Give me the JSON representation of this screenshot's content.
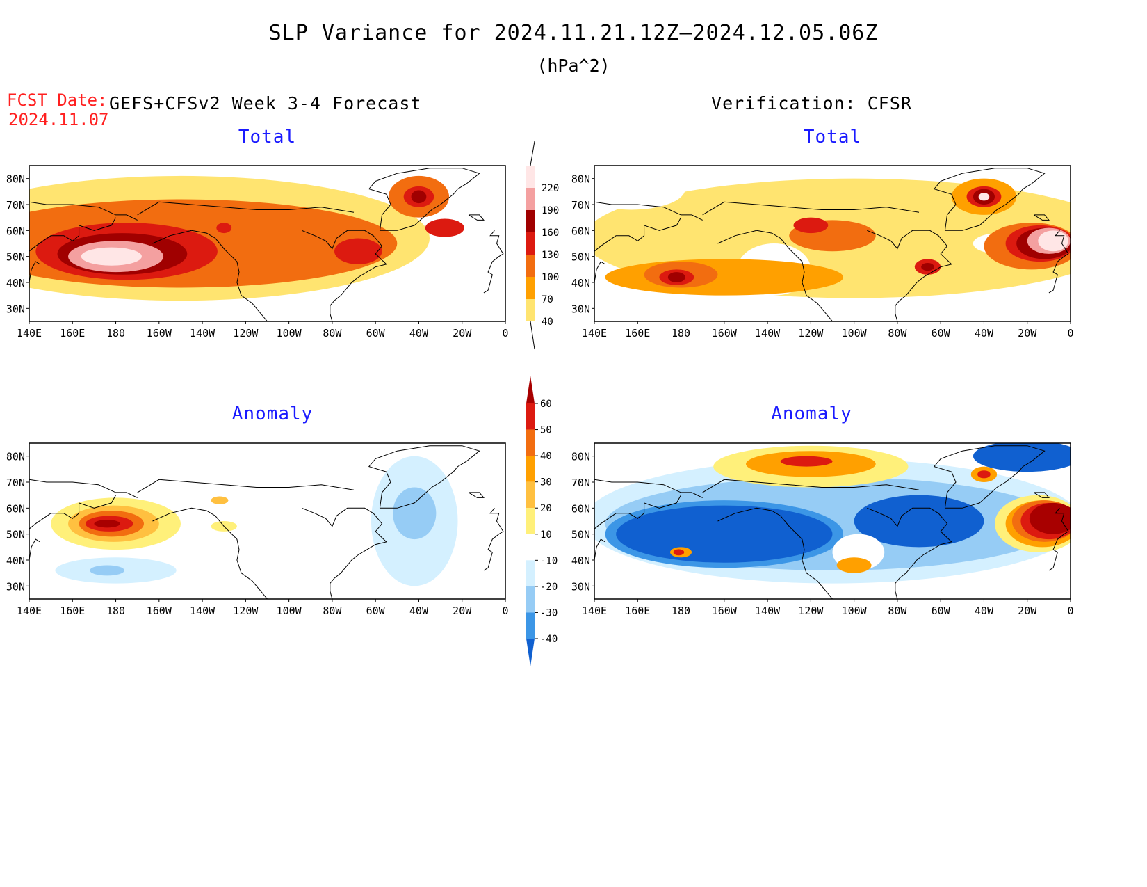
{
  "title": "SLP Variance for 2024.11.21.12Z—2024.12.05.06Z",
  "units": "(hPa^2)",
  "fcst_date_label": "FCST Date:",
  "fcst_date": "2024.11.07",
  "left_header": "GEFS+CFSv2 Week 3-4 Forecast",
  "right_header": "Verification: CFSR",
  "panel_titles": {
    "top_left": "Total",
    "top_right": "Total",
    "bottom_left": "Anomaly",
    "bottom_right": "Anomaly"
  },
  "lat_labels": [
    "80N",
    "70N",
    "60N",
    "50N",
    "40N",
    "30N"
  ],
  "lon_labels": [
    "140E",
    "160E",
    "180",
    "160W",
    "140W",
    "120W",
    "100W",
    "80W",
    "60W",
    "40W",
    "20W",
    "0"
  ],
  "total_colorbar": {
    "levels": [
      "220",
      "190",
      "160",
      "130",
      "100",
      "70",
      "40"
    ],
    "colors": [
      "#ffe6e6",
      "#f4a0a0",
      "#a00000",
      "#dc1a10",
      "#f26d10",
      "#ffa000",
      "#ffe470"
    ]
  },
  "anomaly_colorbar": {
    "levels": [
      "60",
      "50",
      "40",
      "30",
      "20",
      "10",
      "-10",
      "-20",
      "-30",
      "-40"
    ],
    "colors": [
      "#a80000",
      "#dc1a10",
      "#f26d10",
      "#ffa000",
      "#ffc040",
      "#fff07a",
      "#ffffff",
      "#d4f0ff",
      "#96ccf5",
      "#3c96e6",
      "#1060d0"
    ]
  },
  "fields": {
    "top_left": [
      {
        "c": "#ffe470",
        "lon": 210,
        "lat": 57,
        "rx": 115,
        "ry": 24
      },
      {
        "c": "#f26d10",
        "lon": 210,
        "lat": 55,
        "rx": 100,
        "ry": 17
      },
      {
        "c": "#dc1a10",
        "lon": 185,
        "lat": 52,
        "rx": 42,
        "ry": 11
      },
      {
        "c": "#a00000",
        "lon": 183,
        "lat": 51,
        "rx": 30,
        "ry": 8
      },
      {
        "c": "#f4a0a0",
        "lon": 180,
        "lat": 50,
        "rx": 22,
        "ry": 6
      },
      {
        "c": "#ffe6e6",
        "lon": 178,
        "lat": 50,
        "rx": 14,
        "ry": 3.5
      },
      {
        "c": "#f26d10",
        "lon": 320,
        "lat": 73,
        "rx": 14,
        "ry": 8
      },
      {
        "c": "#dc1a10",
        "lon": 320,
        "lat": 73,
        "rx": 7,
        "ry": 4
      },
      {
        "c": "#a00000",
        "lon": 320,
        "lat": 73,
        "rx": 3.5,
        "ry": 2.5
      },
      {
        "c": "#dc1a10",
        "lon": 292,
        "lat": 52,
        "rx": 11,
        "ry": 5
      },
      {
        "c": "#dc1a10",
        "lon": 332,
        "lat": 61,
        "rx": 9,
        "ry": 3.5
      },
      {
        "c": "#dc1a10",
        "lon": 230,
        "lat": 61,
        "rx": 3.5,
        "ry": 2
      }
    ],
    "top_right": [
      {
        "c": "#ffe470",
        "lon": 260,
        "lat": 57,
        "rx": 125,
        "ry": 23
      },
      {
        "c": "#ffffff",
        "lon": 157,
        "lat": 76,
        "rx": 25,
        "ry": 8
      },
      {
        "c": "#ffffff",
        "lon": 223,
        "lat": 45,
        "rx": 17,
        "ry": 10
      },
      {
        "c": "#ffffff",
        "lon": 327,
        "lat": 55,
        "rx": 12,
        "ry": 4
      },
      {
        "c": "#ffa000",
        "lon": 200,
        "lat": 42,
        "rx": 55,
        "ry": 7
      },
      {
        "c": "#f26d10",
        "lon": 180,
        "lat": 43,
        "rx": 17,
        "ry": 5
      },
      {
        "c": "#dc1a10",
        "lon": 178,
        "lat": 42,
        "rx": 8,
        "ry": 3
      },
      {
        "c": "#a00000",
        "lon": 178,
        "lat": 42,
        "rx": 4,
        "ry": 2
      },
      {
        "c": "#f26d10",
        "lon": 250,
        "lat": 58,
        "rx": 20,
        "ry": 6
      },
      {
        "c": "#dc1a10",
        "lon": 240,
        "lat": 62,
        "rx": 8,
        "ry": 3
      },
      {
        "c": "#ffa000",
        "lon": 320,
        "lat": 73,
        "rx": 15,
        "ry": 7
      },
      {
        "c": "#dc1a10",
        "lon": 320,
        "lat": 73,
        "rx": 8,
        "ry": 4
      },
      {
        "c": "#a00000",
        "lon": 320,
        "lat": 73,
        "rx": 5,
        "ry": 3
      },
      {
        "c": "#ffe6e6",
        "lon": 320,
        "lat": 73,
        "rx": 2.5,
        "ry": 1.5
      },
      {
        "c": "#f26d10",
        "lon": 342,
        "lat": 54,
        "rx": 22,
        "ry": 9
      },
      {
        "c": "#dc1a10",
        "lon": 346,
        "lat": 55,
        "rx": 16,
        "ry": 7
      },
      {
        "c": "#a00000",
        "lon": 348,
        "lat": 55,
        "rx": 13,
        "ry": 6
      },
      {
        "c": "#f4a0a0",
        "lon": 350,
        "lat": 56,
        "rx": 10,
        "ry": 5
      },
      {
        "c": "#ffe6e6",
        "lon": 352,
        "lat": 56,
        "rx": 7,
        "ry": 4
      },
      {
        "c": "#dc1a10",
        "lon": 294,
        "lat": 46,
        "rx": 6,
        "ry": 3
      },
      {
        "c": "#a00000",
        "lon": 294,
        "lat": 46,
        "rx": 3,
        "ry": 1.5
      }
    ],
    "bottom_left": [
      {
        "c": "#d4f0ff",
        "lon": 318,
        "lat": 55,
        "rx": 20,
        "ry": 25
      },
      {
        "c": "#96ccf5",
        "lon": 318,
        "lat": 58,
        "rx": 10,
        "ry": 10
      },
      {
        "c": "#d4f0ff",
        "lon": 180,
        "lat": 36,
        "rx": 28,
        "ry": 5
      },
      {
        "c": "#96ccf5",
        "lon": 176,
        "lat": 36,
        "rx": 8,
        "ry": 2
      },
      {
        "c": "#fff07a",
        "lon": 180,
        "lat": 54,
        "rx": 30,
        "ry": 10
      },
      {
        "c": "#ffc040",
        "lon": 179,
        "lat": 54,
        "rx": 21,
        "ry": 7
      },
      {
        "c": "#f26d10",
        "lon": 178,
        "lat": 54,
        "rx": 15,
        "ry": 5
      },
      {
        "c": "#dc1a10",
        "lon": 177,
        "lat": 54,
        "rx": 11,
        "ry": 3
      },
      {
        "c": "#a80000",
        "lon": 176,
        "lat": 54,
        "rx": 6,
        "ry": 1.5
      },
      {
        "c": "#ffc040",
        "lon": 228,
        "lat": 63,
        "rx": 4,
        "ry": 1.5
      },
      {
        "c": "#fff07a",
        "lon": 230,
        "lat": 53,
        "rx": 6,
        "ry": 2
      }
    ],
    "bottom_right": [
      {
        "c": "#d4f0ff",
        "lon": 250,
        "lat": 55,
        "rx": 115,
        "ry": 24
      },
      {
        "c": "#96ccf5",
        "lon": 250,
        "lat": 54,
        "rx": 105,
        "ry": 18
      },
      {
        "c": "#3c96e6",
        "lon": 200,
        "lat": 50,
        "rx": 55,
        "ry": 13
      },
      {
        "c": "#1060d0",
        "lon": 200,
        "lat": 50,
        "rx": 50,
        "ry": 11
      },
      {
        "c": "#1060d0",
        "lon": 290,
        "lat": 55,
        "rx": 30,
        "ry": 10
      },
      {
        "c": "#1060d0",
        "lon": 340,
        "lat": 80,
        "rx": 25,
        "ry": 6
      },
      {
        "c": "#fff07a",
        "lon": 240,
        "lat": 76,
        "rx": 45,
        "ry": 8
      },
      {
        "c": "#ffa000",
        "lon": 240,
        "lat": 77,
        "rx": 30,
        "ry": 5
      },
      {
        "c": "#dc1a10",
        "lon": 238,
        "lat": 78,
        "rx": 12,
        "ry": 2
      },
      {
        "c": "#ffffff",
        "lon": 262,
        "lat": 43,
        "rx": 12,
        "ry": 7
      },
      {
        "c": "#ffa000",
        "lon": 260,
        "lat": 38,
        "rx": 8,
        "ry": 3
      },
      {
        "c": "#ffa000",
        "lon": 180,
        "lat": 43,
        "rx": 5,
        "ry": 2
      },
      {
        "c": "#dc1a10",
        "lon": 179,
        "lat": 43,
        "rx": 2.5,
        "ry": 1.2
      },
      {
        "c": "#ffa000",
        "lon": 320,
        "lat": 73,
        "rx": 6,
        "ry": 3
      },
      {
        "c": "#dc1a10",
        "lon": 320,
        "lat": 73,
        "rx": 3,
        "ry": 1.5
      },
      {
        "c": "#fff07a",
        "lon": 345,
        "lat": 54,
        "rx": 20,
        "ry": 11
      },
      {
        "c": "#ffa000",
        "lon": 347,
        "lat": 54,
        "rx": 17,
        "ry": 9
      },
      {
        "c": "#f26d10",
        "lon": 348,
        "lat": 55,
        "rx": 15,
        "ry": 8
      },
      {
        "c": "#dc1a10",
        "lon": 350,
        "lat": 55,
        "rx": 13,
        "ry": 7
      },
      {
        "c": "#a80000",
        "lon": 352,
        "lat": 56,
        "rx": 11,
        "ry": 6
      }
    ]
  },
  "coastlines": [
    [
      [
        190,
        66
      ],
      [
        200,
        71
      ],
      [
        215,
        70
      ],
      [
        230,
        69
      ],
      [
        245,
        68
      ],
      [
        260,
        68
      ],
      [
        275,
        69
      ],
      [
        290,
        67
      ]
    ],
    [
      [
        197,
        55
      ],
      [
        205,
        58
      ],
      [
        215,
        60
      ],
      [
        222,
        59
      ],
      [
        226,
        57
      ],
      [
        230,
        53
      ],
      [
        236,
        48
      ],
      [
        237,
        44
      ],
      [
        236,
        40
      ],
      [
        238,
        35
      ],
      [
        243,
        32
      ],
      [
        247,
        28
      ],
      [
        250,
        25
      ]
    ],
    [
      [
        280,
        25
      ],
      [
        279,
        28
      ],
      [
        279,
        31
      ],
      [
        281,
        33
      ],
      [
        284,
        35
      ],
      [
        286,
        37
      ],
      [
        289,
        40
      ],
      [
        292,
        42
      ],
      [
        296,
        44
      ],
      [
        300,
        46
      ],
      [
        305,
        47
      ],
      [
        300,
        51
      ],
      [
        303,
        54
      ],
      [
        299,
        58
      ],
      [
        295,
        60
      ],
      [
        287,
        60
      ],
      [
        282,
        57
      ],
      [
        280,
        53
      ],
      [
        277,
        56
      ],
      [
        272,
        58
      ],
      [
        266,
        60
      ]
    ],
    [
      [
        302,
        60
      ],
      [
        310,
        60
      ],
      [
        318,
        62
      ],
      [
        322,
        65
      ],
      [
        326,
        68
      ],
      [
        330,
        70
      ],
      [
        333,
        72
      ],
      [
        336,
        74
      ],
      [
        338,
        76
      ],
      [
        342,
        78
      ],
      [
        345,
        80
      ],
      [
        348,
        82
      ],
      [
        340,
        84
      ],
      [
        325,
        84
      ],
      [
        310,
        82
      ],
      [
        300,
        79
      ],
      [
        297,
        76
      ],
      [
        305,
        74
      ],
      [
        307,
        70
      ],
      [
        303,
        66
      ],
      [
        302,
        60
      ]
    ],
    [
      [
        343,
        66
      ],
      [
        347,
        64
      ],
      [
        350,
        64
      ],
      [
        348,
        66
      ],
      [
        343,
        66
      ]
    ],
    [
      [
        140,
        71
      ],
      [
        148,
        70
      ],
      [
        160,
        70
      ],
      [
        172,
        69
      ],
      [
        180,
        66
      ],
      [
        185,
        66
      ],
      [
        190,
        64
      ]
    ],
    [
      [
        140,
        52
      ],
      [
        143,
        54
      ],
      [
        150,
        58
      ],
      [
        156,
        58
      ],
      [
        160,
        56
      ],
      [
        163,
        58
      ],
      [
        163,
        62
      ],
      [
        170,
        60
      ],
      [
        178,
        62
      ],
      [
        180,
        65
      ]
    ],
    [
      [
        140,
        40
      ],
      [
        141,
        45
      ],
      [
        143,
        48
      ],
      [
        145,
        47
      ]
    ],
    [
      [
        350,
        36
      ],
      [
        352,
        37
      ],
      [
        354,
        43
      ],
      [
        352,
        44
      ],
      [
        354,
        48
      ],
      [
        357,
        50
      ],
      [
        359,
        51
      ],
      [
        356,
        55
      ],
      [
        357,
        58
      ],
      [
        353,
        58
      ],
      [
        355,
        60
      ]
    ]
  ]
}
